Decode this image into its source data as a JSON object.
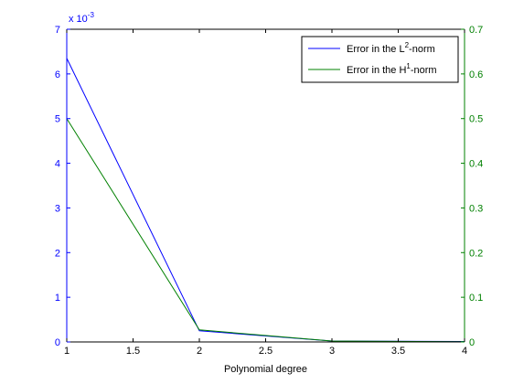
{
  "chart_data": {
    "type": "line",
    "xlabel": "Polynomial degree",
    "xlim": [
      1,
      4
    ],
    "x_ticks": [
      1,
      1.5,
      2,
      2.5,
      3,
      3.5,
      4
    ],
    "x_tick_labels": [
      "1",
      "1.5",
      "2",
      "2.5",
      "3",
      "3.5",
      "4"
    ],
    "y_left": {
      "lim": [
        0,
        7
      ],
      "ticks": [
        0,
        1,
        2,
        3,
        4,
        5,
        6,
        7
      ],
      "tick_labels": [
        "0",
        "1",
        "2",
        "3",
        "4",
        "5",
        "6",
        "7"
      ],
      "multiplier_base": "x 10",
      "multiplier_exp": "-3",
      "color": "#0000ff"
    },
    "y_right": {
      "lim": [
        0,
        0.7
      ],
      "ticks": [
        0,
        0.1,
        0.2,
        0.3,
        0.4,
        0.5,
        0.6,
        0.7
      ],
      "tick_labels": [
        "0",
        "0.1",
        "0.2",
        "0.3",
        "0.4",
        "0.5",
        "0.6",
        "0.7"
      ],
      "color": "#008000"
    },
    "legend_position": "top-right",
    "grid": false,
    "series": [
      {
        "axis": "left",
        "color": "#0000ff",
        "legend_pre": "Error in the L",
        "legend_sup": "2",
        "legend_post": "-norm",
        "x": [
          1,
          2,
          3,
          4
        ],
        "y": [
          6.35,
          0.25,
          0.02,
          0.01
        ]
      },
      {
        "axis": "right",
        "color": "#008000",
        "legend_pre": "Error in the H",
        "legend_sup": "1",
        "legend_post": "-norm",
        "x": [
          1,
          2,
          3,
          4
        ],
        "y": [
          0.5,
          0.027,
          0.002,
          0.0005
        ]
      }
    ]
  }
}
